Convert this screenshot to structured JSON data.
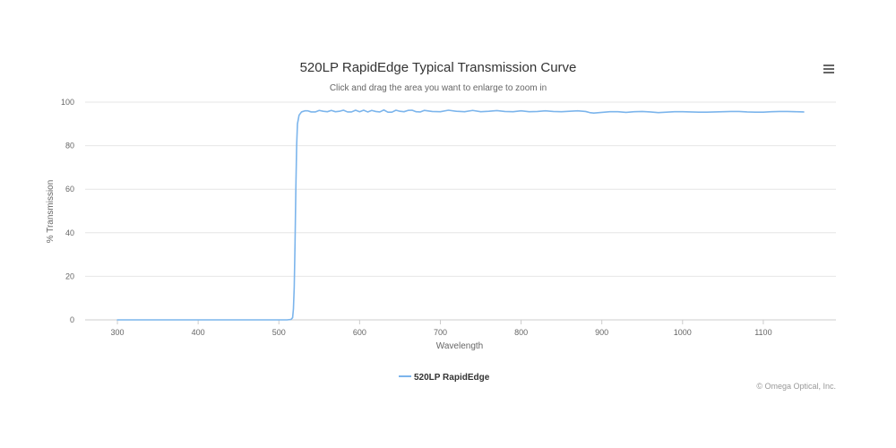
{
  "chart_data": {
    "type": "line",
    "title": "520LP RapidEdge Typical Transmission Curve",
    "subtitle": "Click and drag the area you want to enlarge to zoom in",
    "xlabel": "Wavelength",
    "ylabel": "% Transmission",
    "xlim": [
      260,
      1190
    ],
    "ylim": [
      0,
      100
    ],
    "x_ticks": [
      300,
      400,
      500,
      600,
      700,
      800,
      900,
      1000,
      1100
    ],
    "y_ticks": [
      0,
      20,
      40,
      60,
      80,
      100
    ],
    "grid": "horizontal",
    "legend": "bottom-center",
    "series": [
      {
        "name": "520LP RapidEdge",
        "color": "#7cb5ec",
        "points": [
          [
            300,
            0
          ],
          [
            350,
            0
          ],
          [
            400,
            0
          ],
          [
            450,
            0
          ],
          [
            500,
            0
          ],
          [
            510,
            0
          ],
          [
            515,
            0.2
          ],
          [
            517,
            1
          ],
          [
            518,
            5
          ],
          [
            519,
            15
          ],
          [
            520,
            35
          ],
          [
            521,
            60
          ],
          [
            522,
            80
          ],
          [
            523,
            90
          ],
          [
            525,
            94
          ],
          [
            528,
            95.5
          ],
          [
            532,
            96
          ],
          [
            536,
            96
          ],
          [
            540,
            95.5
          ],
          [
            545,
            95.5
          ],
          [
            550,
            96.2
          ],
          [
            555,
            95.8
          ],
          [
            560,
            95.6
          ],
          [
            565,
            96.2
          ],
          [
            570,
            95.6
          ],
          [
            575,
            95.8
          ],
          [
            580,
            96.3
          ],
          [
            585,
            95.5
          ],
          [
            590,
            95.5
          ],
          [
            595,
            96.3
          ],
          [
            600,
            95.6
          ],
          [
            605,
            96.3
          ],
          [
            610,
            95.5
          ],
          [
            615,
            96.2
          ],
          [
            620,
            95.7
          ],
          [
            625,
            95.5
          ],
          [
            630,
            96.4
          ],
          [
            635,
            95.4
          ],
          [
            640,
            95.4
          ],
          [
            645,
            96.3
          ],
          [
            650,
            95.8
          ],
          [
            655,
            95.6
          ],
          [
            660,
            96.2
          ],
          [
            665,
            96.3
          ],
          [
            670,
            95.6
          ],
          [
            675,
            95.5
          ],
          [
            680,
            96.2
          ],
          [
            690,
            95.7
          ],
          [
            700,
            95.6
          ],
          [
            710,
            96.3
          ],
          [
            720,
            95.8
          ],
          [
            730,
            95.6
          ],
          [
            740,
            96.2
          ],
          [
            750,
            95.6
          ],
          [
            760,
            95.8
          ],
          [
            770,
            96.1
          ],
          [
            780,
            95.7
          ],
          [
            790,
            95.6
          ],
          [
            800,
            96.0
          ],
          [
            810,
            95.6
          ],
          [
            820,
            95.7
          ],
          [
            830,
            96.0
          ],
          [
            840,
            95.7
          ],
          [
            850,
            95.6
          ],
          [
            860,
            95.8
          ],
          [
            870,
            96.0
          ],
          [
            880,
            95.7
          ],
          [
            885,
            95.2
          ],
          [
            890,
            95.0
          ],
          [
            900,
            95.3
          ],
          [
            910,
            95.6
          ],
          [
            920,
            95.6
          ],
          [
            930,
            95.3
          ],
          [
            940,
            95.6
          ],
          [
            950,
            95.7
          ],
          [
            960,
            95.5
          ],
          [
            970,
            95.2
          ],
          [
            980,
            95.4
          ],
          [
            990,
            95.6
          ],
          [
            1000,
            95.6
          ],
          [
            1010,
            95.5
          ],
          [
            1020,
            95.4
          ],
          [
            1030,
            95.4
          ],
          [
            1040,
            95.5
          ],
          [
            1050,
            95.6
          ],
          [
            1060,
            95.7
          ],
          [
            1070,
            95.7
          ],
          [
            1080,
            95.5
          ],
          [
            1090,
            95.4
          ],
          [
            1100,
            95.4
          ],
          [
            1110,
            95.6
          ],
          [
            1120,
            95.7
          ],
          [
            1130,
            95.7
          ],
          [
            1140,
            95.6
          ],
          [
            1150,
            95.5
          ]
        ]
      }
    ]
  },
  "credits": "© Omega Optical, Inc.",
  "menu_icon": "hamburger-menu-icon"
}
